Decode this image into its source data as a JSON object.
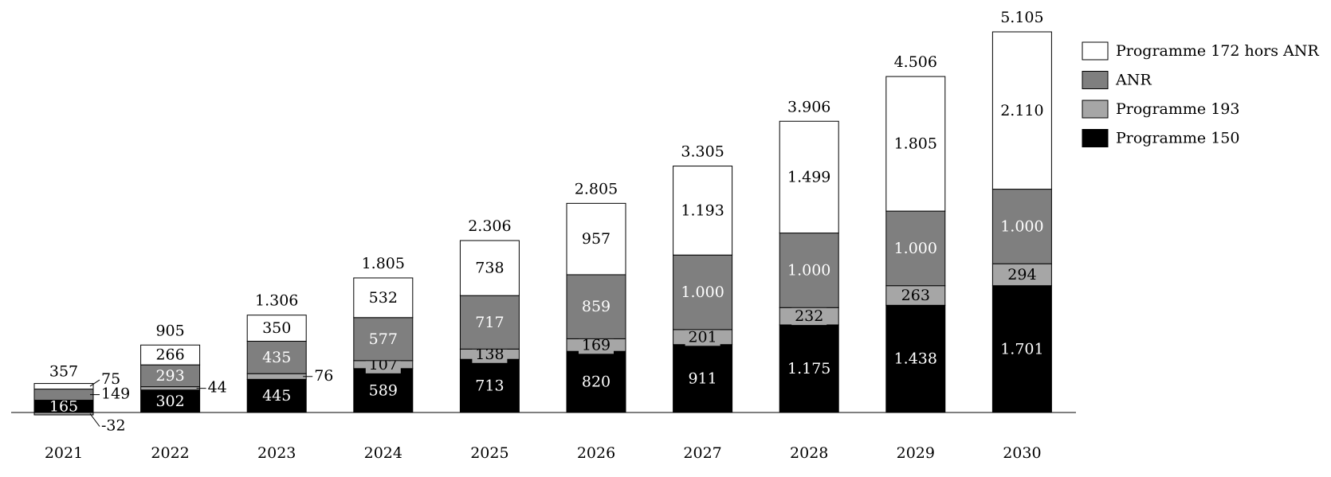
{
  "chart_data": {
    "type": "stacked_bar",
    "categories": [
      "2021",
      "2022",
      "2023",
      "2024",
      "2025",
      "2026",
      "2027",
      "2028",
      "2029",
      "2030"
    ],
    "series": [
      {
        "name": "Programme 150",
        "color": "#000000",
        "text_color": "#ffffff",
        "values": [
          165,
          302,
          445,
          589,
          713,
          820,
          911,
          1175,
          1438,
          1701
        ],
        "value_labels": [
          "165",
          "302",
          "445",
          "589",
          "713",
          "820",
          "911",
          "1.175",
          "1.438",
          "1.701"
        ]
      },
      {
        "name": "Programme 193",
        "color": "#a6a6a6",
        "text_color": "#000000",
        "values": [
          -32,
          44,
          76,
          107,
          138,
          169,
          201,
          232,
          263,
          294
        ],
        "value_labels": [
          "-32",
          "44",
          "76",
          "107",
          "138",
          "169",
          "201",
          "232",
          "263",
          "294"
        ]
      },
      {
        "name": "ANR",
        "color": "#7f7f7f",
        "text_color": "#ffffff",
        "values": [
          149,
          293,
          435,
          577,
          717,
          859,
          1000,
          1000,
          1000,
          1000
        ],
        "value_labels": [
          "149",
          "293",
          "435",
          "577",
          "717",
          "859",
          "1.000",
          "1.000",
          "1.000",
          "1.000"
        ]
      },
      {
        "name": "Programme 172 hors ANR",
        "color": "#ffffff",
        "text_color": "#000000",
        "values": [
          75,
          266,
          350,
          532,
          738,
          957,
          1193,
          1499,
          1805,
          2110
        ],
        "value_labels": [
          "75",
          "266",
          "350",
          "532",
          "738",
          "957",
          "1.193",
          "1.499",
          "1.805",
          "2.110"
        ]
      }
    ],
    "totals": {
      "values": [
        357,
        905,
        1306,
        1805,
        2306,
        2805,
        3305,
        3906,
        4506,
        5105
      ],
      "value_labels": [
        "357",
        "905",
        "1.306",
        "1.805",
        "2.306",
        "2.805",
        "3.305",
        "3.906",
        "4.506",
        "5.105"
      ]
    }
  }
}
